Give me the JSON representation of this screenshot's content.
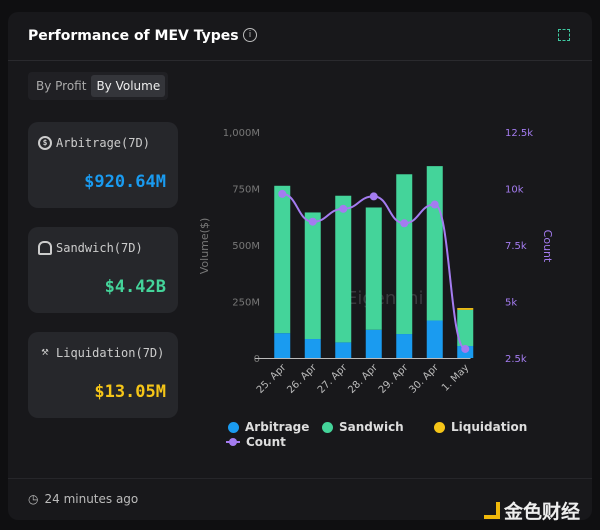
{
  "header": {
    "title": "Performance of MEV Types",
    "info_icon": "info-icon",
    "expand_icon": "expand-icon"
  },
  "toggle": {
    "options": [
      "By Profit",
      "By Volume"
    ],
    "selected": "By Volume"
  },
  "stats": [
    {
      "label": "Arbitrage(7D)",
      "value": "$920.64M",
      "color": "#1a9bf0",
      "icon": "dollar-cycle-icon"
    },
    {
      "label": "Sandwich(7D)",
      "value": "$4.42B",
      "color": "#44d49a",
      "icon": "sandwich-icon"
    },
    {
      "label": "Liquidation(7D)",
      "value": "$13.05M",
      "color": "#f5c518",
      "icon": "gavel-icon"
    }
  ],
  "chart_data": {
    "type": "bar",
    "stacked": true,
    "categories": [
      "25. Apr",
      "26. Apr",
      "27. Apr",
      "28. Apr",
      "29. Apr",
      "30. Apr",
      "1. May"
    ],
    "ylabel": "Volume($)",
    "ylabel_right": "Count",
    "ylim": [
      0,
      1000
    ],
    "ylim_right": [
      2500,
      12500
    ],
    "yticks": [
      "0",
      "250M",
      "500M",
      "750M",
      "1,000M"
    ],
    "yticks_right": [
      "2.5k",
      "5k",
      "7.5k",
      "10k",
      "12.5k"
    ],
    "series": [
      {
        "name": "Arbitrage",
        "color": "#1a9bf0",
        "values": [
          110,
          84,
          69,
          125,
          106,
          166,
          53
        ]
      },
      {
        "name": "Sandwich",
        "color": "#44d49a",
        "values": [
          652,
          560,
          649,
          541,
          707,
          683,
          160
        ]
      },
      {
        "name": "Liquidation",
        "color": "#f5c518",
        "values": [
          0,
          0,
          0,
          0,
          0,
          0,
          8
        ]
      },
      {
        "name": "Count",
        "type": "line",
        "axis": "right",
        "color": "#a47cf0",
        "values": [
          9760,
          8530,
          9100,
          9650,
          8460,
          9290,
          2900
        ]
      }
    ],
    "legend": "bottom",
    "watermark": "EigenPhi"
  },
  "footer": {
    "updated": "24 minutes ago"
  },
  "brand": "金色财经"
}
